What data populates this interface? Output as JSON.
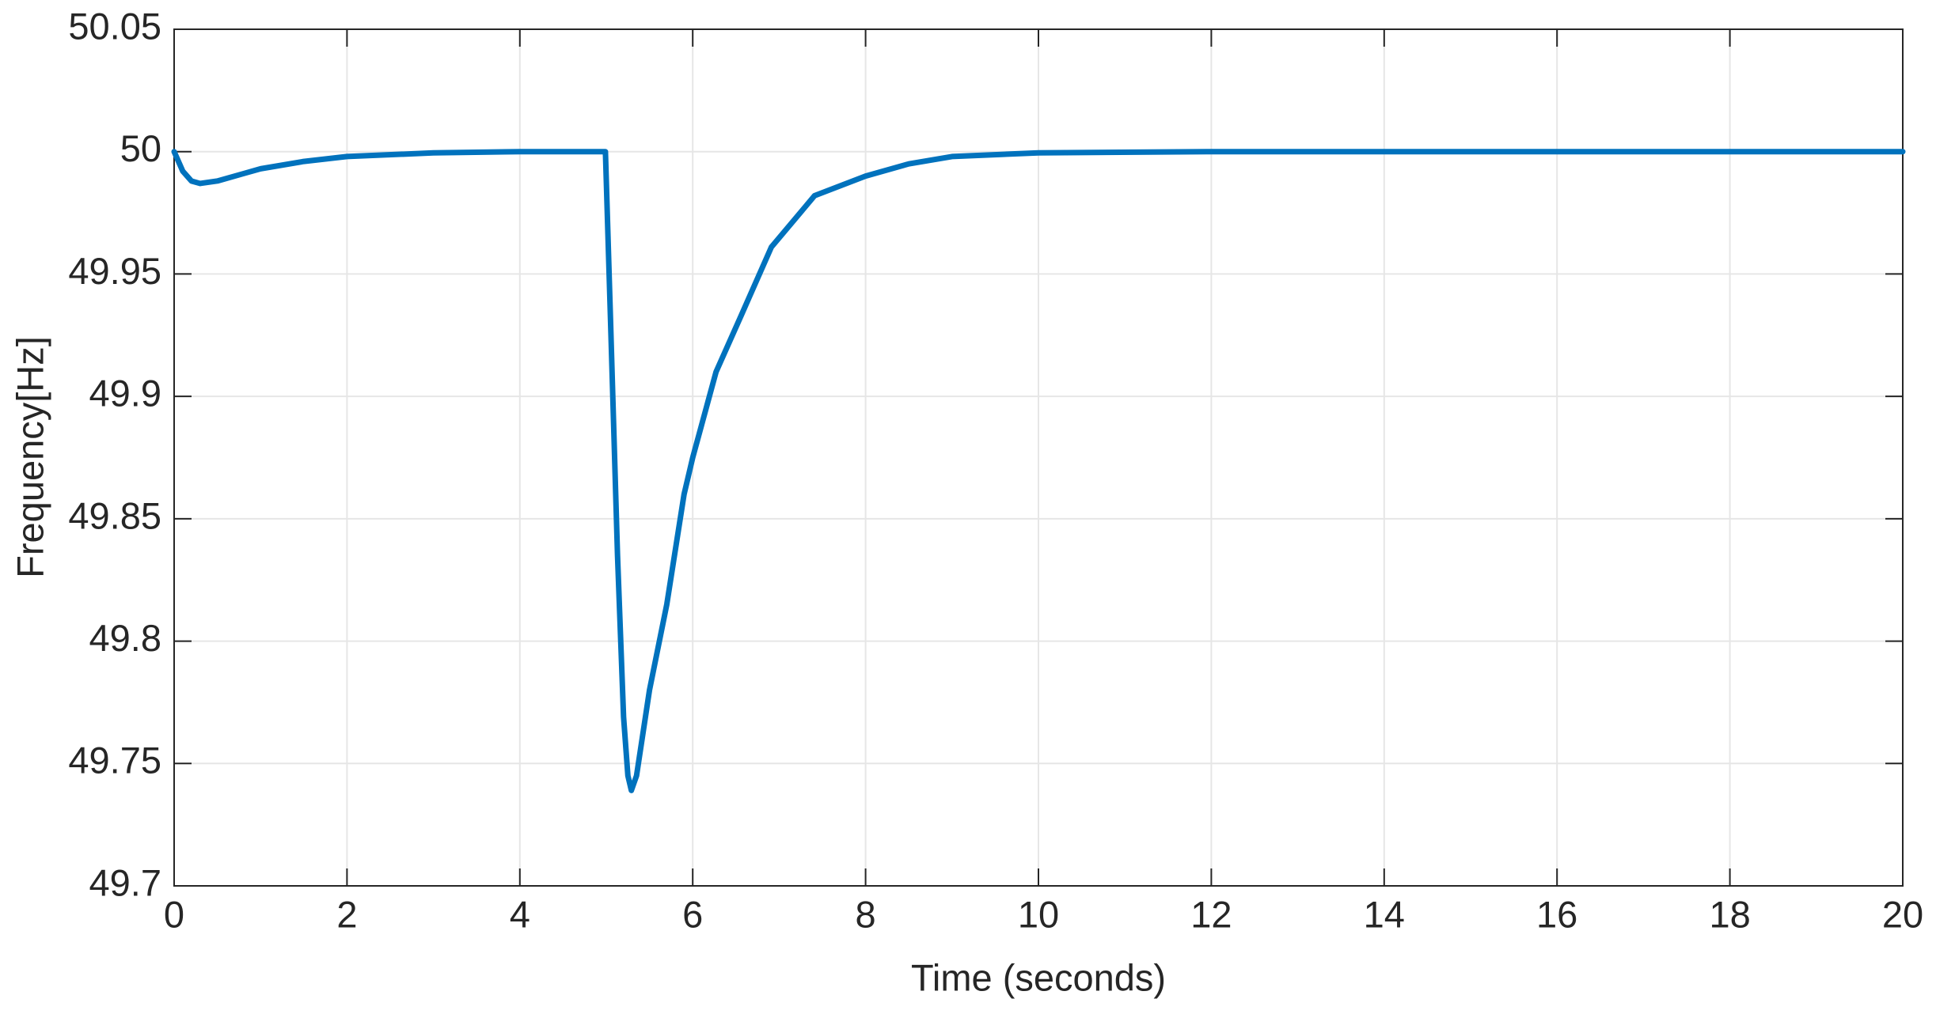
{
  "chart_data": {
    "type": "line",
    "x_label": "Time (seconds)",
    "y_label": "Frequency[Hz]",
    "x": [
      0,
      0.1,
      0.2,
      0.3,
      0.5,
      0.8,
      1.0,
      1.5,
      2,
      3,
      4,
      4.99,
      5.05,
      5.13,
      5.2,
      5.25,
      5.29,
      5.35,
      5.5,
      5.7,
      5.9,
      6.0,
      6.27,
      6.56,
      6.91,
      7.41,
      8.0,
      8.5,
      9,
      10,
      12,
      20
    ],
    "series": [
      {
        "name": "Frequency",
        "color": "#0072bd",
        "values": [
          50.0,
          49.992,
          49.988,
          49.987,
          49.988,
          49.991,
          49.993,
          49.996,
          49.998,
          49.9995,
          50.0,
          50.0,
          49.93,
          49.835,
          49.769,
          49.745,
          49.739,
          49.745,
          49.78,
          49.815,
          49.86,
          49.875,
          49.91,
          49.933,
          49.961,
          49.982,
          49.99,
          49.995,
          49.998,
          49.9995,
          50.0,
          50.0
        ]
      }
    ],
    "xlim": [
      0,
      20
    ],
    "xticks": [
      0,
      2,
      4,
      6,
      8,
      10,
      12,
      14,
      16,
      18,
      20
    ],
    "ylim": [
      49.7,
      50.05
    ],
    "yticks": [
      49.7,
      49.75,
      49.8,
      49.85,
      49.9,
      49.95,
      50,
      50.05
    ],
    "grid": true
  }
}
